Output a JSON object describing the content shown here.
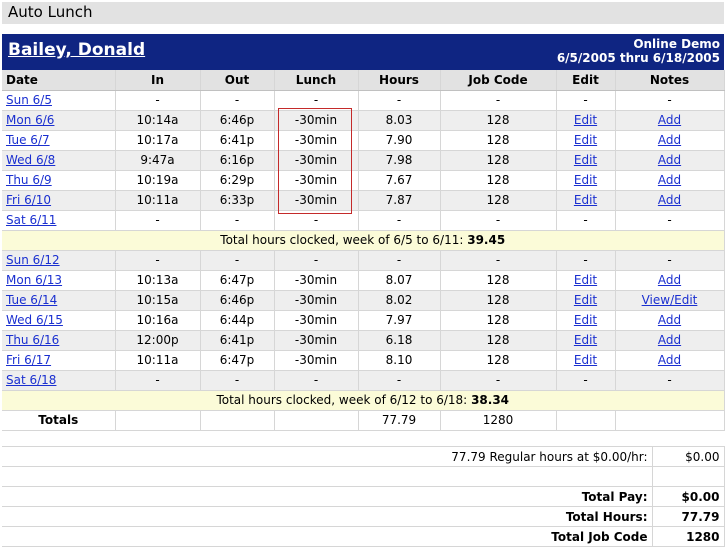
{
  "page": {
    "title": "Auto Lunch"
  },
  "employee": {
    "name": "Bailey, Donald",
    "company": "Online Demo",
    "period": "6/5/2005 thru 6/18/2005"
  },
  "columns": [
    "Date",
    "In",
    "Out",
    "Lunch",
    "Hours",
    "Job Code",
    "Edit",
    "Notes"
  ],
  "weeks": [
    {
      "days": [
        {
          "date": "Sun 6/5",
          "in": "-",
          "out": "-",
          "lunch": "-",
          "hours": "-",
          "job": "-",
          "edit": "-",
          "notes": "-"
        },
        {
          "date": "Mon 6/6",
          "in": "10:14a",
          "out": "6:46p",
          "lunch": "-30min",
          "hours": "8.03",
          "job": "128",
          "edit": "Edit",
          "notes": "Add"
        },
        {
          "date": "Tue 6/7",
          "in": "10:17a",
          "out": "6:41p",
          "lunch": "-30min",
          "hours": "7.90",
          "job": "128",
          "edit": "Edit",
          "notes": "Add"
        },
        {
          "date": "Wed 6/8",
          "in": "9:47a",
          "out": "6:16p",
          "lunch": "-30min",
          "hours": "7.98",
          "job": "128",
          "edit": "Edit",
          "notes": "Add"
        },
        {
          "date": "Thu 6/9",
          "in": "10:19a",
          "out": "6:29p",
          "lunch": "-30min",
          "hours": "7.67",
          "job": "128",
          "edit": "Edit",
          "notes": "Add"
        },
        {
          "date": "Fri 6/10",
          "in": "10:11a",
          "out": "6:33p",
          "lunch": "-30min",
          "hours": "7.87",
          "job": "128",
          "edit": "Edit",
          "notes": "Add"
        },
        {
          "date": "Sat 6/11",
          "in": "-",
          "out": "-",
          "lunch": "-",
          "hours": "-",
          "job": "-",
          "edit": "-",
          "notes": "-"
        }
      ],
      "total_label": "Total hours clocked, week of 6/5 to 6/11:",
      "total_value": "39.45"
    },
    {
      "days": [
        {
          "date": "Sun 6/12",
          "in": "-",
          "out": "-",
          "lunch": "-",
          "hours": "-",
          "job": "-",
          "edit": "-",
          "notes": "-"
        },
        {
          "date": "Mon 6/13",
          "in": "10:13a",
          "out": "6:47p",
          "lunch": "-30min",
          "hours": "8.07",
          "job": "128",
          "edit": "Edit",
          "notes": "Add"
        },
        {
          "date": "Tue 6/14",
          "in": "10:15a",
          "out": "6:46p",
          "lunch": "-30min",
          "hours": "8.02",
          "job": "128",
          "edit": "Edit",
          "notes": "View/Edit"
        },
        {
          "date": "Wed 6/15",
          "in": "10:16a",
          "out": "6:44p",
          "lunch": "-30min",
          "hours": "7.97",
          "job": "128",
          "edit": "Edit",
          "notes": "Add"
        },
        {
          "date": "Thu 6/16",
          "in": "12:00p",
          "out": "6:41p",
          "lunch": "-30min",
          "hours": "6.18",
          "job": "128",
          "edit": "Edit",
          "notes": "Add"
        },
        {
          "date": "Fri 6/17",
          "in": "10:11a",
          "out": "6:47p",
          "lunch": "-30min",
          "hours": "8.10",
          "job": "128",
          "edit": "Edit",
          "notes": "Add"
        },
        {
          "date": "Sat 6/18",
          "in": "-",
          "out": "-",
          "lunch": "-",
          "hours": "-",
          "job": "-",
          "edit": "-",
          "notes": "-"
        }
      ],
      "total_label": "Total hours clocked, week of 6/12 to 6/18:",
      "total_value": "38.34"
    }
  ],
  "totals": {
    "label": "Totals",
    "hours": "77.79",
    "job": "1280"
  },
  "pay": {
    "regular_label": "77.79 Regular hours at $0.00/hr:",
    "regular_value": "$0.00",
    "total_pay_label": "Total Pay:",
    "total_pay_value": "$0.00",
    "total_hours_label": "Total Hours:",
    "total_hours_value": "77.79",
    "total_job_label": "Total Job Code",
    "total_job_value": "1280"
  },
  "colors": {
    "header_bg": "#0f2582",
    "link": "#1a2fd0",
    "week_total_bg": "#fbfbd8",
    "highlight_box": "#c42a2a"
  }
}
